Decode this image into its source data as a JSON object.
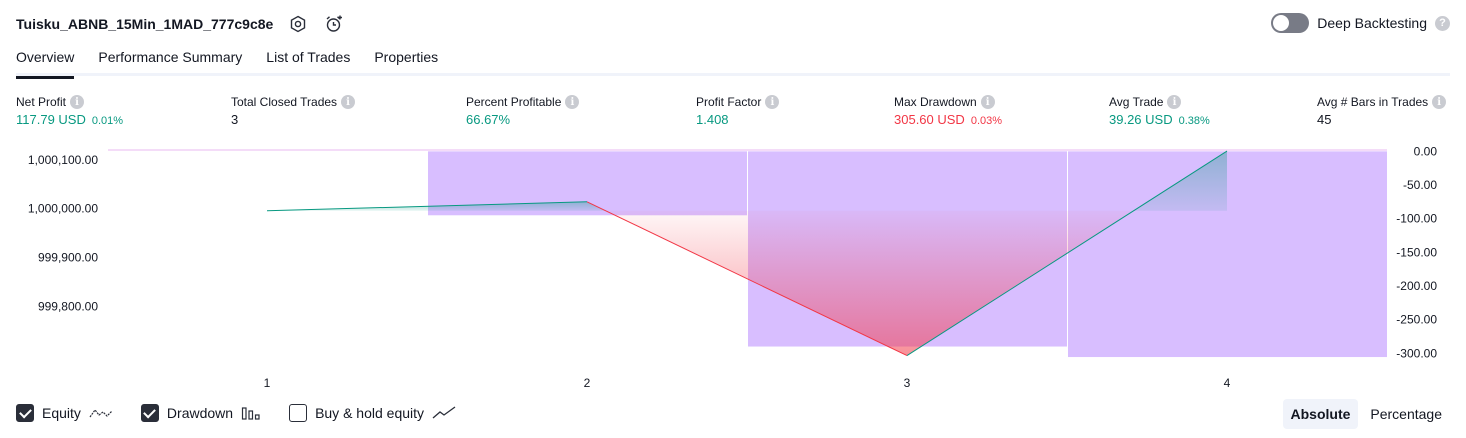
{
  "header": {
    "strategy_name": "Tuisku_ABNB_15Min_1MAD_777c9c8e",
    "deep_backtesting_label": "Deep Backtesting",
    "help_glyph": "?"
  },
  "tabs": [
    {
      "label": "Overview",
      "active": true
    },
    {
      "label": "Performance Summary",
      "active": false
    },
    {
      "label": "List of Trades",
      "active": false
    },
    {
      "label": "Properties",
      "active": false
    }
  ],
  "stats": [
    {
      "label": "Net Profit",
      "value": "117.79 USD",
      "pct": "0.01%",
      "color": "green"
    },
    {
      "label": "Total Closed Trades",
      "value": "3",
      "pct": "",
      "color": "dark"
    },
    {
      "label": "Percent Profitable",
      "value": "66.67%",
      "pct": "",
      "color": "green"
    },
    {
      "label": "Profit Factor",
      "value": "1.408",
      "pct": "",
      "color": "green"
    },
    {
      "label": "Max Drawdown",
      "value": "305.60 USD",
      "pct": "0.03%",
      "color": "red"
    },
    {
      "label": "Avg Trade",
      "value": "39.26 USD",
      "pct": "0.38%",
      "color": "green"
    },
    {
      "label": "Avg # Bars in Trades",
      "value": "45",
      "pct": "",
      "color": "dark"
    }
  ],
  "chart_data": {
    "type": "line",
    "x": [
      1,
      2,
      3,
      4
    ],
    "x_ticks": [
      "1",
      "2",
      "3",
      "4"
    ],
    "equity": [
      999995.5,
      1000014,
      999699,
      1000117.79
    ],
    "equity_start": 999995.5,
    "equity_color": "#089981",
    "loss_color": "#f23645",
    "left_axis": {
      "ticks": [
        "1,000,100.00",
        "1,000,000.00",
        "999,900.00",
        "999,800.00"
      ],
      "values": [
        1000100,
        1000000,
        999900,
        999800
      ],
      "ylim": [
        999690,
        1000120
      ]
    },
    "drawdown": [
      0,
      -95,
      -290,
      -305.6
    ],
    "drawdown_color": "#d1b3ff",
    "right_axis": {
      "ticks": [
        "0.00",
        "-50.00",
        "-100.00",
        "-150.00",
        "-200.00",
        "-250.00",
        "-300.00"
      ],
      "values": [
        0,
        -50,
        -100,
        -150,
        -200,
        -250,
        -300
      ],
      "ylim": [
        -310,
        2
      ]
    },
    "grid": false,
    "legend": "bottom-left"
  },
  "legend": {
    "equity_label": "Equity",
    "drawdown_label": "Drawdown",
    "buyhold_label": "Buy & hold equity"
  },
  "mode": {
    "absolute_label": "Absolute",
    "percentage_label": "Percentage"
  }
}
